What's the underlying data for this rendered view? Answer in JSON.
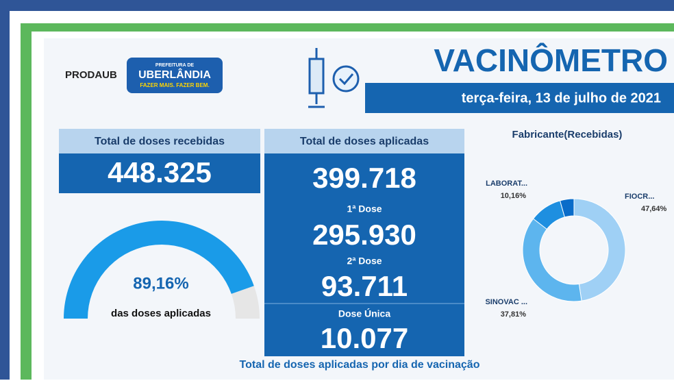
{
  "header": {
    "logo_left": "PRODAUB",
    "logo_right_top": "PREFEITURA DE",
    "logo_right_main": "UBERLÂNDIA",
    "logo_right_slogan": "FAZER MAIS. FAZER BEM.",
    "title": "VACINÔMETRO",
    "date": "terça-feira, 13 de julho de 2021"
  },
  "received": {
    "label": "Total de doses recebidas",
    "value": "448.325"
  },
  "gauge_chart": {
    "type": "gauge",
    "value": 89.16,
    "value_label": "89,16%",
    "caption": "das doses aplicadas",
    "lim": [
      0,
      100
    ],
    "color": "#1a9be8"
  },
  "applied": {
    "label": "Total de doses aplicadas",
    "total": "399.718",
    "dose1_label": "1ª Dose",
    "dose1": "295.930",
    "dose2_label": "2ª Dose",
    "dose2": "93.711",
    "single_label": "Dose Única",
    "single": "10.077"
  },
  "donut_chart": {
    "type": "donut",
    "title": "Fabricante(Recebidas)",
    "categories": [
      "FIOCR...",
      "SINOVAC ...",
      "LABORAT...",
      null
    ],
    "values": [
      47.64,
      37.81,
      10.16,
      4.39
    ],
    "value_labels": [
      "47,64%",
      "37,81%",
      "10,16%",
      null
    ],
    "colors": [
      "#9fd0f5",
      "#5db5ee",
      "#1e8fe0",
      "#0a6cc9"
    ]
  },
  "footer": "Total de doses aplicadas por dia de vacinação"
}
